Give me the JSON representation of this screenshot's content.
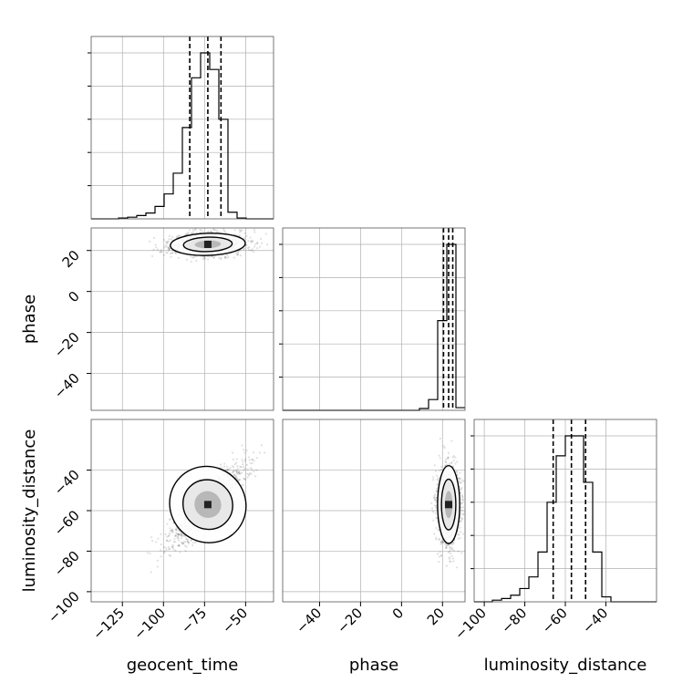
{
  "chart_data": {
    "type": "corner",
    "parameters": [
      "geocent_time",
      "phase",
      "luminosity_distance"
    ],
    "axis_labels": {
      "geocent_time": "geocent_time",
      "phase": "phase",
      "luminosity_distance": "luminosity_distance"
    },
    "ranges": {
      "geocent_time": [
        -144,
        -33
      ],
      "phase": [
        -58,
        31
      ],
      "luminosity_distance": [
        -105,
        -15
      ]
    },
    "ticks": {
      "geocent_time": [
        -125,
        -100,
        -75,
        -50
      ],
      "phase": [
        -40,
        -20,
        0,
        20
      ],
      "luminosity_distance": [
        -100,
        -80,
        -60,
        -40
      ]
    },
    "tick_labels": {
      "geocent_time": [
        "−125",
        "−100",
        "−75",
        "−50"
      ],
      "phase": [
        "−40",
        "−20",
        "0",
        "20"
      ],
      "luminosity_distance": [
        "−100",
        "−80",
        "−60",
        "−40"
      ]
    },
    "quantiles": {
      "geocent_time": [
        -84,
        -73,
        -65
      ],
      "phase": [
        20.5,
        23.0,
        25.0
      ],
      "luminosity_distance": [
        -66,
        -57,
        -50
      ]
    },
    "histograms": {
      "geocent_time": {
        "bin_edges": [
          -144,
          -138.45,
          -132.9,
          -127.35,
          -121.8,
          -116.25,
          -110.7,
          -105.15,
          -99.6,
          -94.05,
          -88.5,
          -82.95,
          -77.4,
          -71.85,
          -66.3,
          -60.75,
          -55.2,
          -49.65,
          -44.1,
          -38.55,
          -33
        ],
        "counts": [
          0,
          0,
          0,
          1,
          2,
          4,
          7,
          15,
          30,
          55,
          110,
          170,
          200,
          180,
          120,
          8,
          1,
          0,
          0,
          0
        ]
      },
      "phase": {
        "bin_edges": [
          -58,
          -53.55,
          -49.1,
          -44.65,
          -40.2,
          -35.75,
          -31.3,
          -26.85,
          -22.4,
          -17.95,
          -13.5,
          -9.05,
          -4.6,
          -0.15,
          4.3,
          8.75,
          13.2,
          17.65,
          22.1,
          26.55,
          31
        ],
        "counts": [
          0,
          0,
          0,
          0,
          0,
          0,
          0,
          0,
          0,
          0,
          0,
          0,
          0,
          0,
          0,
          2,
          12,
          100,
          185,
          3
        ]
      },
      "luminosity_distance": {
        "bin_edges": [
          -105,
          -100.5,
          -96,
          -91.5,
          -87,
          -82.5,
          -78,
          -73.5,
          -69,
          -64.5,
          -60,
          -55.5,
          -51,
          -46.5,
          -42,
          -37.5,
          -33,
          -28.5,
          -24,
          -19.5,
          -15
        ],
        "counts": [
          0,
          0,
          1,
          2,
          4,
          8,
          15,
          30,
          60,
          88,
          100,
          100,
          72,
          30,
          3,
          0,
          0,
          0,
          0,
          0
        ]
      }
    },
    "grid": true,
    "colors": {
      "line": "#000000",
      "grid": "#b0b0b0",
      "samples": "#000000",
      "density_fill": [
        "#ffffff",
        "#e6e6e6",
        "#b3b3b3",
        "#7a7a7a"
      ]
    }
  }
}
